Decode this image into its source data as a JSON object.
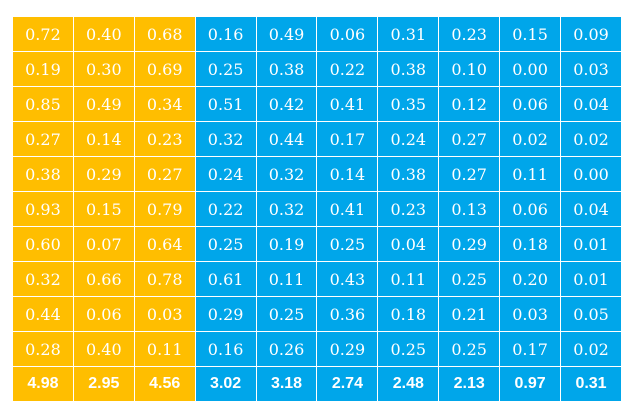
{
  "colors": {
    "orange": "#ffbe00",
    "blue": "#00a6ea",
    "text": "#ffffff"
  },
  "column_groups": [
    "orange",
    "orange",
    "orange",
    "blue",
    "blue",
    "blue",
    "blue",
    "blue",
    "blue",
    "blue"
  ],
  "rows": [
    [
      "0.72",
      "0.40",
      "0.68",
      "0.16",
      "0.49",
      "0.06",
      "0.31",
      "0.23",
      "0.15",
      "0.09"
    ],
    [
      "0.19",
      "0.30",
      "0.69",
      "0.25",
      "0.38",
      "0.22",
      "0.38",
      "0.10",
      "0.00",
      "0.03"
    ],
    [
      "0.85",
      "0.49",
      "0.34",
      "0.51",
      "0.42",
      "0.41",
      "0.35",
      "0.12",
      "0.06",
      "0.04"
    ],
    [
      "0.27",
      "0.14",
      "0.23",
      "0.32",
      "0.44",
      "0.17",
      "0.24",
      "0.27",
      "0.02",
      "0.02"
    ],
    [
      "0.38",
      "0.29",
      "0.27",
      "0.24",
      "0.32",
      "0.14",
      "0.38",
      "0.27",
      "0.11",
      "0.00"
    ],
    [
      "0.93",
      "0.15",
      "0.79",
      "0.22",
      "0.32",
      "0.41",
      "0.23",
      "0.13",
      "0.06",
      "0.04"
    ],
    [
      "0.60",
      "0.07",
      "0.64",
      "0.25",
      "0.19",
      "0.25",
      "0.04",
      "0.29",
      "0.18",
      "0.01"
    ],
    [
      "0.32",
      "0.66",
      "0.78",
      "0.61",
      "0.11",
      "0.43",
      "0.11",
      "0.25",
      "0.20",
      "0.01"
    ],
    [
      "0.44",
      "0.06",
      "0.03",
      "0.29",
      "0.25",
      "0.36",
      "0.18",
      "0.21",
      "0.03",
      "0.05"
    ],
    [
      "0.28",
      "0.40",
      "0.11",
      "0.16",
      "0.26",
      "0.29",
      "0.25",
      "0.25",
      "0.17",
      "0.02"
    ]
  ],
  "totals": [
    "4.98",
    "2.95",
    "4.56",
    "3.02",
    "3.18",
    "2.74",
    "2.48",
    "2.13",
    "0.97",
    "0.31"
  ]
}
